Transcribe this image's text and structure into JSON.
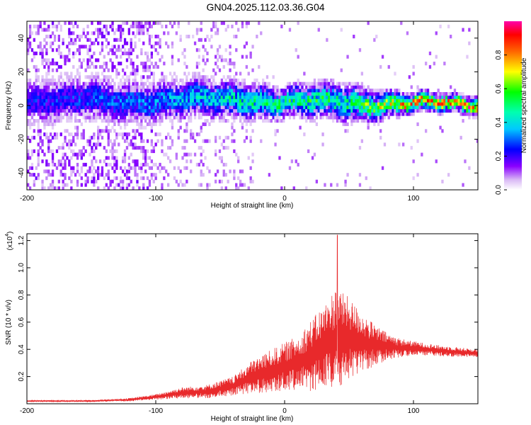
{
  "title": "GN04.2025.112.03.36.G04",
  "chart_data": [
    {
      "type": "heatmap",
      "xlabel": "Height of straight line (km)",
      "ylabel": "Frequency (Hz)",
      "xlim": [
        -200,
        150
      ],
      "ylim": [
        -50,
        50
      ],
      "xticks": [
        -200,
        -100,
        0,
        100
      ],
      "yticks": [
        -40,
        -20,
        0,
        20,
        40
      ],
      "colorbar": {
        "label": "Normalized spectral amplitude",
        "range": [
          0,
          1
        ],
        "ticks": [
          "0.0",
          "0.2",
          "0.4",
          "0.6",
          "0.8"
        ],
        "colormap": "rainbow (white/violet -> blue -> cyan -> green -> yellow -> red -> magenta)"
      },
      "ridge": [
        {
          "x": -200,
          "center_hz": 2,
          "halfwidth_hz": 8,
          "peak_amp": 0.25
        },
        {
          "x": -100,
          "center_hz": 2,
          "halfwidth_hz": 7,
          "peak_amp": 0.35
        },
        {
          "x": -30,
          "center_hz": 3,
          "halfwidth_hz": 6,
          "peak_amp": 0.5
        },
        {
          "x": 0,
          "center_hz": 1,
          "halfwidth_hz": 5,
          "peak_amp": 0.55
        },
        {
          "x": 50,
          "center_hz": 1,
          "halfwidth_hz": 6,
          "peak_amp": 0.55
        },
        {
          "x": 100,
          "center_hz": 0,
          "halfwidth_hz": 3,
          "peak_amp": 0.85
        },
        {
          "x": 150,
          "center_hz": 0,
          "halfwidth_hz": 3,
          "peak_amp": 0.9
        }
      ],
      "noise_extent_x": [
        -200,
        -25
      ]
    },
    {
      "type": "line",
      "xlabel": "Height of straight line (km)",
      "ylabel": "SNR (10 * v/v)",
      "y_multiplier_label": "(x10",
      "y_multiplier_exp": "4",
      "y_multiplier_close": ")",
      "xlim": [
        -200,
        150
      ],
      "ylim": [
        0,
        1.25
      ],
      "xticks": [
        -200,
        -100,
        0,
        100
      ],
      "yticks": [
        "0.2",
        "0.4",
        "0.6",
        "0.8",
        "1.0",
        "1.2"
      ],
      "series": [
        {
          "color": "#e8292b",
          "envelope": {
            "x": [
              -200,
              -150,
              -120,
              -100,
              -80,
              -60,
              -40,
              -25,
              -10,
              0,
              10,
              20,
              30,
              40,
              50,
              60,
              70,
              80,
              90,
              100,
              120,
              150
            ],
            "mean": [
              0.02,
              0.02,
              0.03,
              0.05,
              0.08,
              0.09,
              0.13,
              0.2,
              0.24,
              0.27,
              0.3,
              0.35,
              0.42,
              0.48,
              0.48,
              0.45,
              0.43,
              0.42,
              0.41,
              0.41,
              0.39,
              0.37
            ],
            "amplitude": [
              0.005,
              0.006,
              0.012,
              0.02,
              0.04,
              0.05,
              0.07,
              0.12,
              0.16,
              0.18,
              0.2,
              0.26,
              0.3,
              0.38,
              0.3,
              0.22,
              0.15,
              0.1,
              0.07,
              0.05,
              0.04,
              0.03
            ]
          },
          "peak": {
            "x": 41,
            "y": 1.24
          }
        }
      ]
    }
  ]
}
